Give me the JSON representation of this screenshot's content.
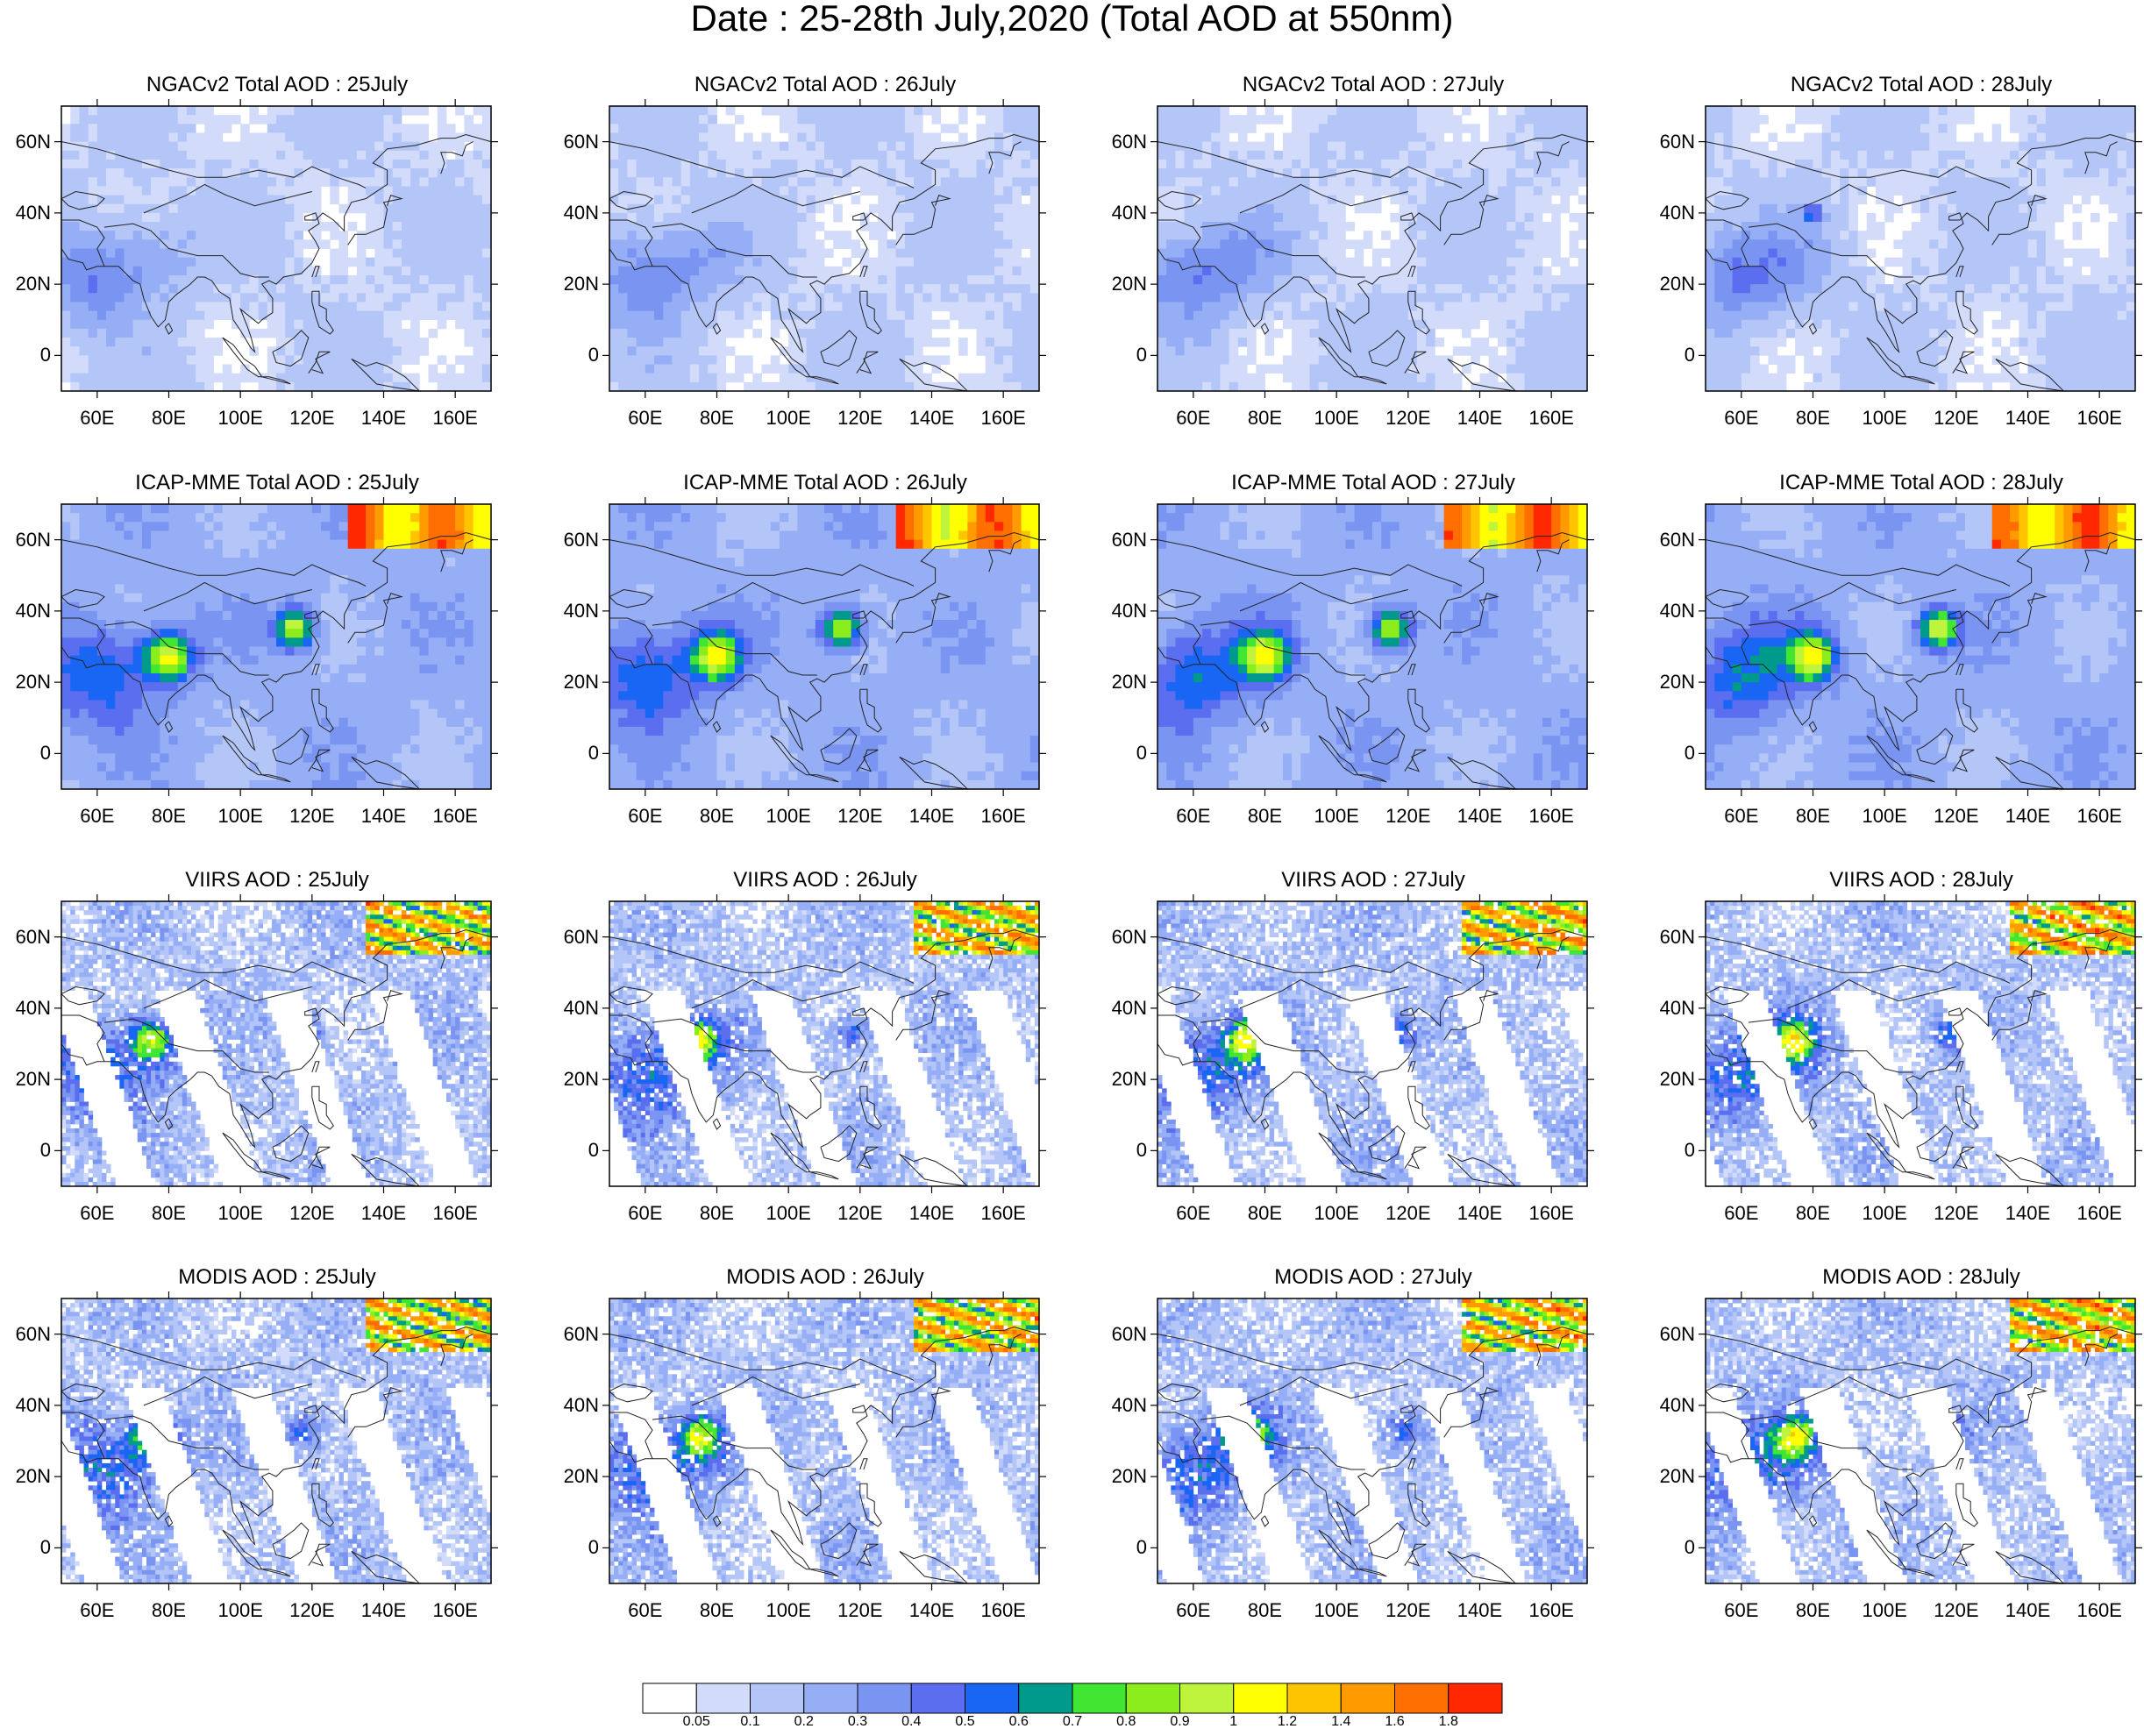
{
  "figure": {
    "title": "Date : 25-28th July,2020 (Total AOD at 550nm)"
  },
  "axes": {
    "lon_ticks": [
      "60E",
      "80E",
      "100E",
      "120E",
      "140E",
      "160E"
    ],
    "lat_ticks": [
      "60N",
      "40N",
      "20N",
      "0"
    ],
    "lon_range": [
      50,
      170
    ],
    "lat_range": [
      -10,
      70
    ]
  },
  "panels": [
    {
      "row": 0,
      "col": 0,
      "title": "NGACv2 Total AOD : 25July"
    },
    {
      "row": 0,
      "col": 1,
      "title": "NGACv2 Total AOD : 26July"
    },
    {
      "row": 0,
      "col": 2,
      "title": "NGACv2 Total AOD : 27July"
    },
    {
      "row": 0,
      "col": 3,
      "title": "NGACv2 Total AOD : 28July"
    },
    {
      "row": 1,
      "col": 0,
      "title": "ICAP-MME Total AOD : 25July"
    },
    {
      "row": 1,
      "col": 1,
      "title": "ICAP-MME Total AOD : 26July"
    },
    {
      "row": 1,
      "col": 2,
      "title": "ICAP-MME Total AOD : 27July"
    },
    {
      "row": 1,
      "col": 3,
      "title": "ICAP-MME Total AOD : 28July"
    },
    {
      "row": 2,
      "col": 0,
      "title": "VIIRS AOD : 25July"
    },
    {
      "row": 2,
      "col": 1,
      "title": "VIIRS AOD : 26July"
    },
    {
      "row": 2,
      "col": 2,
      "title": "VIIRS AOD : 27July"
    },
    {
      "row": 2,
      "col": 3,
      "title": "VIIRS AOD : 28July"
    },
    {
      "row": 3,
      "col": 0,
      "title": "MODIS AOD : 25July"
    },
    {
      "row": 3,
      "col": 1,
      "title": "MODIS AOD : 26July"
    },
    {
      "row": 3,
      "col": 2,
      "title": "MODIS AOD : 27July"
    },
    {
      "row": 3,
      "col": 3,
      "title": "MODIS AOD : 28July"
    }
  ],
  "colorbar": {
    "levels": [
      "0.05",
      "0.1",
      "0.2",
      "0.3",
      "0.4",
      "0.5",
      "0.6",
      "0.7",
      "0.8",
      "0.9",
      "1",
      "1.2",
      "1.4",
      "1.6",
      "1.8"
    ],
    "colors": [
      "#ffffff",
      "#d2dcfa",
      "#b4c6f8",
      "#96aef6",
      "#7a94f2",
      "#5b6ef0",
      "#1966f5",
      "#009a8c",
      "#40e632",
      "#8ced1c",
      "#bef53c",
      "#ffff00",
      "#ffc400",
      "#ff9b00",
      "#ff6e00",
      "#ff2800"
    ]
  }
}
